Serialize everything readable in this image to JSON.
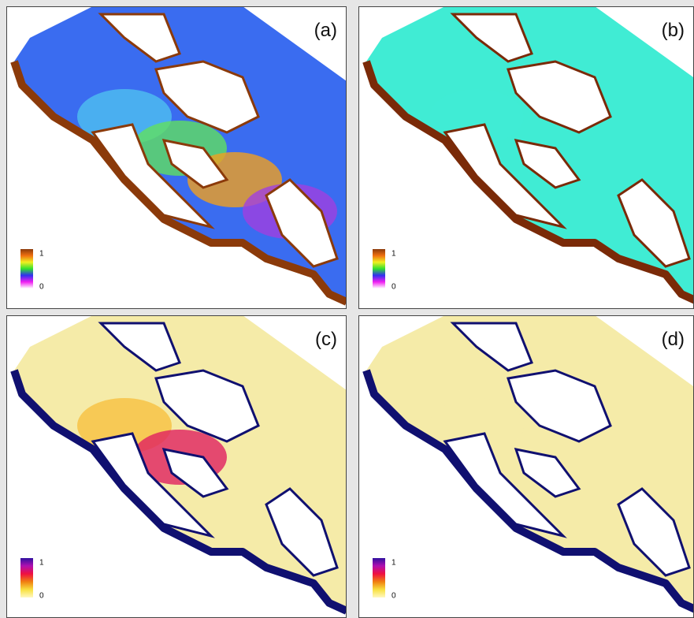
{
  "panels": [
    {
      "label": "(a)",
      "legend": {
        "max": 1,
        "min": 0
      }
    },
    {
      "label": "(b)",
      "legend": {
        "max": 1,
        "min": 0
      }
    },
    {
      "label": "(c)",
      "legend": {
        "max": 1,
        "min": 0
      }
    },
    {
      "label": "(d)",
      "legend": {
        "max": 1,
        "min": 0
      }
    }
  ]
}
